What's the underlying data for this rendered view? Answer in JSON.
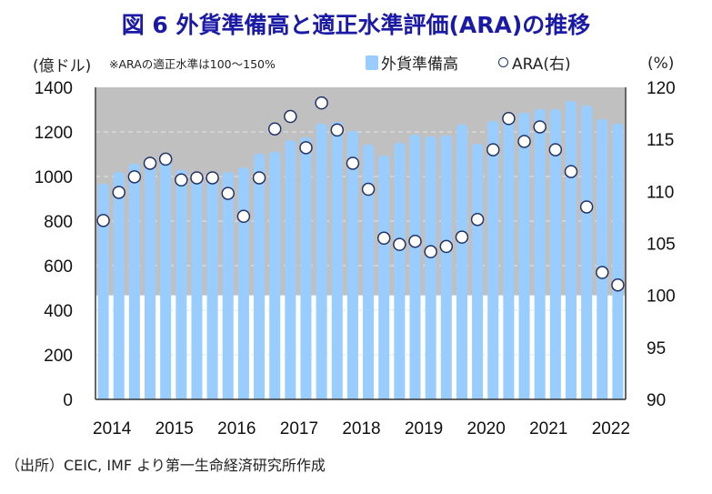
{
  "title": "図 6  外貨準備高と適正水準評価(ARA)の推移",
  "unit_left": "(億ドル)",
  "note": "※ARAの適正水準は100～150%",
  "unit_right": "(%)",
  "source": "（出所）CEIC, IMF より第一生命経済研究所作成",
  "colors": {
    "title": "#1a1aa6",
    "bar": "#99ccff",
    "band": "#c0c0c0",
    "circle_stroke": "#223366",
    "circle_fill": "#ffffff"
  },
  "chart_data": {
    "type": "bar+scatter",
    "title": "図 6  外貨準備高と適正水準評価(ARA)の推移",
    "x_tick_labels": [
      "2014",
      "2015",
      "2016",
      "2017",
      "2018",
      "2019",
      "2020",
      "2021",
      "2022"
    ],
    "x_periods": [
      "2014Q1",
      "2014Q2",
      "2014Q3",
      "2014Q4",
      "2015Q1",
      "2015Q2",
      "2015Q3",
      "2015Q4",
      "2016Q1",
      "2016Q2",
      "2016Q3",
      "2016Q4",
      "2017Q1",
      "2017Q2",
      "2017Q3",
      "2017Q4",
      "2018Q1",
      "2018Q2",
      "2018Q3",
      "2018Q4",
      "2019Q1",
      "2019Q2",
      "2019Q3",
      "2019Q4",
      "2020Q1",
      "2020Q2",
      "2020Q3",
      "2020Q4",
      "2021Q1",
      "2021Q2",
      "2021Q3",
      "2021Q4",
      "2022Q1",
      "2022Q2"
    ],
    "left_axis": {
      "label": "(億ドル)",
      "ylim": [
        0,
        1400
      ],
      "ticks": [
        "0",
        "200",
        "400",
        "600",
        "800",
        "1000",
        "1200",
        "1400"
      ]
    },
    "right_axis": {
      "label": "(%)",
      "ylim": [
        90,
        120
      ],
      "ticks": [
        "90",
        "95",
        "100",
        "105",
        "110",
        "115",
        "120"
      ]
    },
    "shaded_band_right": [
      100,
      120
    ],
    "grid": true,
    "legend": {
      "placement": "top",
      "entries": [
        "外貨準備高",
        "ARA(右)"
      ]
    },
    "series": [
      {
        "name": "外貨準備高",
        "type": "bar",
        "axis": "left",
        "values": [
          967,
          1020,
          1057,
          1075,
          1080,
          1029,
          1010,
          1000,
          1020,
          1040,
          1102,
          1110,
          1163,
          1176,
          1237,
          1245,
          1204,
          1143,
          1094,
          1151,
          1188,
          1180,
          1184,
          1233,
          1147,
          1249,
          1273,
          1286,
          1302,
          1302,
          1339,
          1318,
          1257,
          1237
        ]
      },
      {
        "name": "ARA(右)",
        "type": "scatter",
        "axis": "right",
        "values": [
          107.2,
          109.9,
          111.4,
          112.7,
          113.1,
          111.1,
          111.3,
          111.3,
          109.8,
          107.6,
          111.3,
          116.0,
          117.2,
          114.2,
          118.5,
          115.9,
          112.7,
          110.2,
          105.5,
          104.9,
          105.2,
          104.2,
          104.7,
          105.6,
          107.3,
          114.0,
          117.0,
          114.8,
          116.2,
          114.0,
          111.9,
          108.5,
          102.2,
          101.0
        ]
      }
    ]
  }
}
